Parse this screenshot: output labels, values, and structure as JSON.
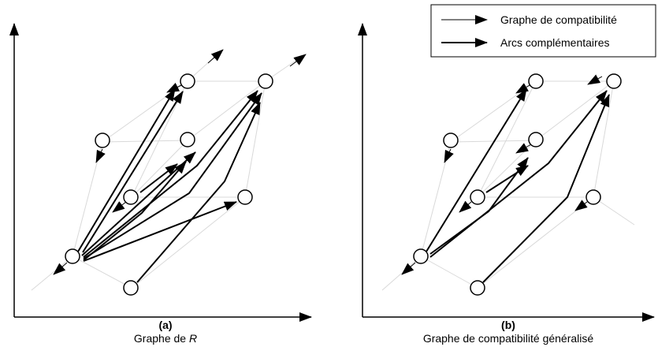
{
  "legend": {
    "items": [
      {
        "label": "Graphe de compatibilité",
        "style": "thin-arrow"
      },
      {
        "label": "Arcs complémentaires",
        "style": "thick-arrow"
      }
    ]
  },
  "panels": [
    {
      "id": "a",
      "letter": "(a)",
      "title_prefix": "Graphe de ",
      "title_italic": "R"
    },
    {
      "id": "b",
      "letter": "(b)",
      "title_prefix": "Graphe de compatibilité généralisé",
      "title_italic": ""
    }
  ],
  "colors": {
    "ink": "#000000",
    "thin_edge": "#d9d9d9",
    "background": "#ffffff"
  }
}
